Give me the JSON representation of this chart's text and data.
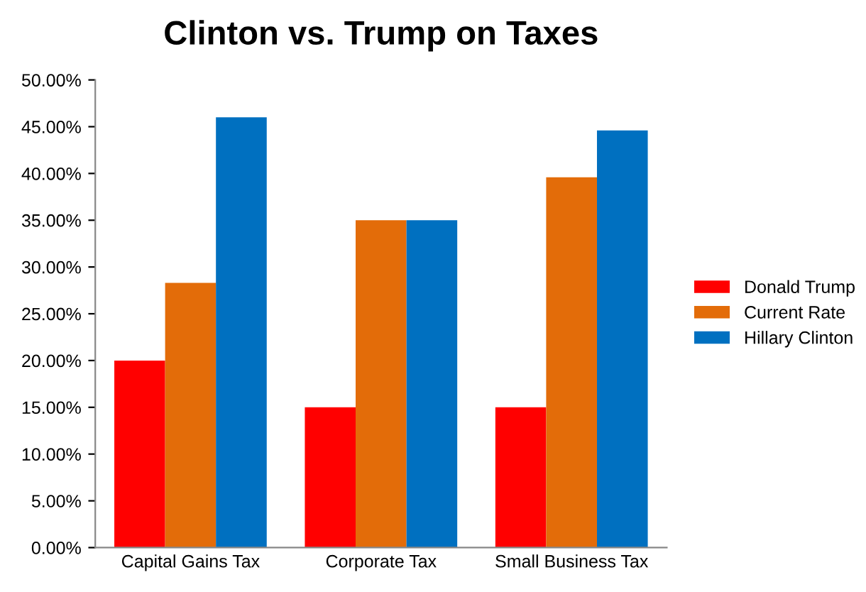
{
  "chart_data": {
    "type": "bar",
    "title": "Clinton vs. Trump on Taxes",
    "categories": [
      "Capital Gains Tax",
      "Corporate Tax",
      "Small Business Tax"
    ],
    "series": [
      {
        "name": "Donald Trump",
        "color": "#ff0000",
        "values": [
          20,
          15,
          15
        ]
      },
      {
        "name": "Current Rate",
        "color": "#e36c09",
        "values": [
          28.3,
          35,
          39.6
        ]
      },
      {
        "name": "Hillary Clinton",
        "color": "#0070c0",
        "values": [
          46,
          35,
          44.6
        ]
      }
    ],
    "ylim": [
      0,
      50
    ],
    "yticks": [
      {
        "value": 0,
        "label": "0.00%"
      },
      {
        "value": 5,
        "label": "5.00%"
      },
      {
        "value": 10,
        "label": "10.00%"
      },
      {
        "value": 15,
        "label": "15.00%"
      },
      {
        "value": 20,
        "label": "20.00%"
      },
      {
        "value": 25,
        "label": "25.00%"
      },
      {
        "value": 30,
        "label": "30.00%"
      },
      {
        "value": 35,
        "label": "35.00%"
      },
      {
        "value": 40,
        "label": "40.00%"
      },
      {
        "value": 45,
        "label": "45.00%"
      },
      {
        "value": 50,
        "label": "50.00%"
      }
    ],
    "grid": false,
    "legend": "right"
  }
}
